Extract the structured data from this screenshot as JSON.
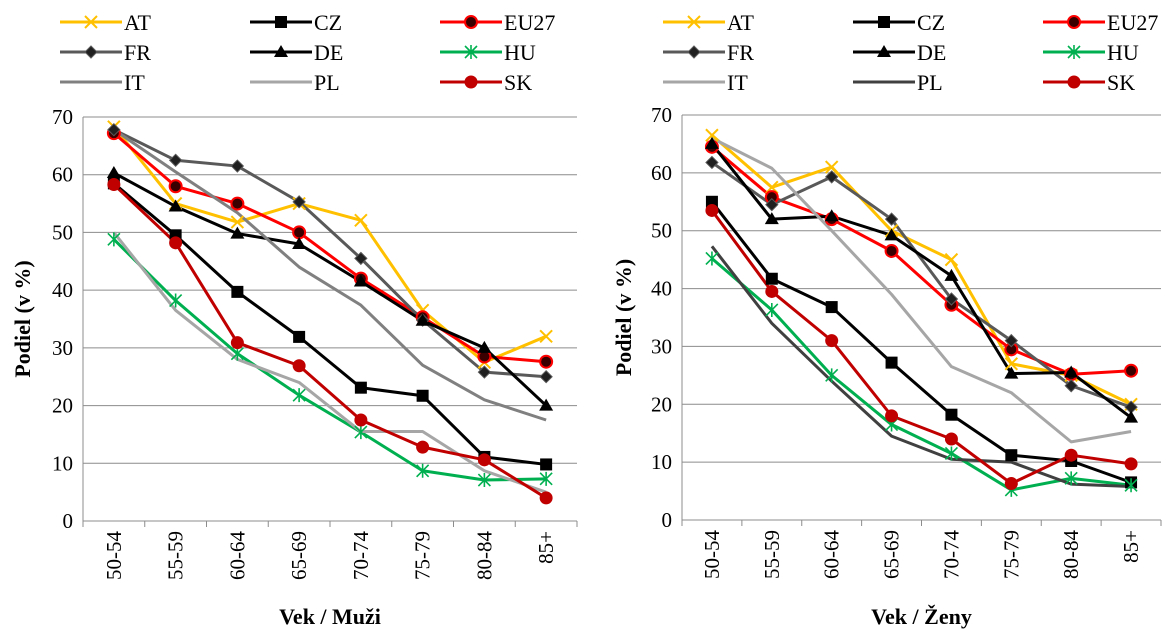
{
  "chart_data": [
    {
      "type": "line",
      "title": "",
      "xlabel": "Vek / Muži",
      "ylabel": "Podiel (v %)",
      "ylim": [
        0,
        70
      ],
      "yticks": [
        0,
        10,
        20,
        30,
        40,
        50,
        60,
        70
      ],
      "grid": true,
      "legend_position": "top",
      "categories": [
        "50-54",
        "55-59",
        "60-64",
        "65-69",
        "70-74",
        "75-79",
        "80-84",
        "85+"
      ],
      "series": [
        {
          "name": "AT",
          "color": "#FFC000",
          "marker": "x",
          "values": [
            68.3,
            55.0,
            51.8,
            55.0,
            52.1,
            36.5,
            27.5,
            32.0
          ]
        },
        {
          "name": "CZ",
          "color": "#000000",
          "marker": "square",
          "values": [
            58.5,
            49.5,
            39.7,
            31.9,
            23.1,
            21.7,
            11.1,
            9.8
          ]
        },
        {
          "name": "EU27",
          "color": "#FF0000",
          "marker": "circle-dark",
          "values": [
            67.2,
            58.0,
            55.0,
            50.0,
            42.0,
            35.3,
            28.5,
            27.6
          ]
        },
        {
          "name": "FR",
          "color": "#595959",
          "marker": "diamond",
          "values": [
            67.8,
            62.5,
            61.5,
            55.3,
            45.5,
            34.8,
            25.8,
            25.0
          ]
        },
        {
          "name": "DE",
          "color": "#000000",
          "marker": "triangle",
          "values": [
            60.3,
            54.5,
            49.8,
            48.0,
            41.5,
            34.7,
            30.0,
            20.0
          ]
        },
        {
          "name": "HU",
          "color": "#00B050",
          "marker": "star",
          "values": [
            48.8,
            38.2,
            29.0,
            21.8,
            15.4,
            8.7,
            7.1,
            7.3
          ]
        },
        {
          "name": "IT",
          "color": "#808080",
          "marker": "none",
          "values": [
            67.8,
            60.5,
            53.4,
            44.0,
            37.4,
            27.0,
            21.0,
            17.5
          ]
        },
        {
          "name": "PL",
          "color": "#A6A6A6",
          "marker": "none",
          "values": [
            50.0,
            36.5,
            28.0,
            24.0,
            15.5,
            15.5,
            8.7,
            5.0
          ]
        },
        {
          "name": "SK",
          "color": "#C00000",
          "marker": "circle",
          "values": [
            58.3,
            48.2,
            30.9,
            26.9,
            17.5,
            12.8,
            10.6,
            4.0
          ]
        }
      ]
    },
    {
      "type": "line",
      "title": "",
      "xlabel": "Vek / Ženy",
      "ylabel": "Podiel (v %)",
      "ylim": [
        0,
        70
      ],
      "yticks": [
        0,
        10,
        20,
        30,
        40,
        50,
        60,
        70
      ],
      "grid": true,
      "legend_position": "top",
      "categories": [
        "50-54",
        "55-59",
        "60-64",
        "65-69",
        "70-74",
        "75-79",
        "80-84",
        "85+"
      ],
      "series": [
        {
          "name": "AT",
          "color": "#FFC000",
          "marker": "x",
          "values": [
            66.5,
            57.5,
            61.0,
            50.0,
            45.0,
            27.0,
            25.0,
            20.0
          ]
        },
        {
          "name": "CZ",
          "color": "#000000",
          "marker": "square",
          "values": [
            55.0,
            41.7,
            36.8,
            27.2,
            18.2,
            11.2,
            10.2,
            6.5
          ]
        },
        {
          "name": "EU27",
          "color": "#FF0000",
          "marker": "circle-dark",
          "values": [
            64.5,
            55.8,
            52.0,
            46.5,
            37.2,
            29.5,
            25.2,
            25.8
          ]
        },
        {
          "name": "FR",
          "color": "#595959",
          "marker": "diamond",
          "values": [
            61.8,
            54.5,
            59.3,
            52.0,
            38.2,
            31.0,
            23.2,
            19.5
          ]
        },
        {
          "name": "DE",
          "color": "#000000",
          "marker": "triangle",
          "values": [
            65.0,
            52.0,
            52.5,
            49.2,
            42.2,
            25.3,
            25.5,
            17.7
          ]
        },
        {
          "name": "HU",
          "color": "#00B050",
          "marker": "star",
          "values": [
            45.2,
            36.3,
            25.0,
            16.5,
            11.5,
            5.2,
            7.2,
            6.0
          ]
        },
        {
          "name": "IT",
          "color": "#A6A6A6",
          "marker": "none",
          "values": [
            66.0,
            60.8,
            50.0,
            39.0,
            26.5,
            22.0,
            13.5,
            15.3
          ]
        },
        {
          "name": "PL",
          "color": "#404040",
          "marker": "none",
          "values": [
            47.3,
            34.0,
            24.0,
            14.5,
            10.5,
            10.0,
            6.2,
            5.8
          ]
        },
        {
          "name": "SK",
          "color": "#C00000",
          "marker": "circle",
          "values": [
            53.5,
            39.5,
            31.0,
            18.0,
            14.0,
            6.3,
            11.2,
            9.7
          ]
        }
      ]
    }
  ]
}
